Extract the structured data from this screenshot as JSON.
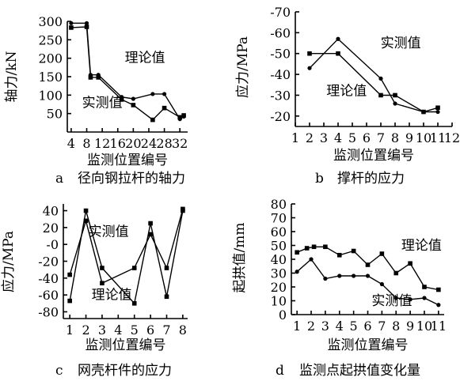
{
  "chart_data": [
    {
      "panel": "a",
      "type": "line",
      "caption": "径向钢拉杆的轴力",
      "xlabel": "监测位置编号",
      "ylabel": "轴力/kN",
      "xticks": [
        4,
        8,
        12,
        16,
        20,
        24,
        28,
        32
      ],
      "yticks": [
        50,
        100,
        150,
        200,
        250,
        300
      ],
      "xlim": [
        3,
        34
      ],
      "ylim": [
        0,
        300
      ],
      "series": [
        {
          "name": "理论值",
          "x": [
            4,
            8,
            9,
            11,
            17,
            20,
            25,
            28,
            32,
            33
          ],
          "y": [
            295,
            295,
            155,
            155,
            95,
            90,
            103,
            103,
            35,
            42
          ]
        },
        {
          "name": "实测值",
          "x": [
            4,
            8,
            9,
            11,
            17,
            20,
            25,
            28,
            32,
            33
          ],
          "y": [
            283,
            285,
            148,
            148,
            88,
            73,
            33,
            65,
            40,
            45
          ]
        }
      ],
      "annotations": [
        {
          "text": "理论值",
          "x": 23,
          "y": 190
        },
        {
          "text": "实测值",
          "x": 12,
          "y": 68
        }
      ]
    },
    {
      "panel": "b",
      "type": "line",
      "caption": "撑杆的应力",
      "xlabel": "监测位置编号",
      "ylabel": "应力/MPa",
      "xticks": [
        1,
        2,
        3,
        4,
        5,
        6,
        7,
        8,
        9,
        10,
        11,
        12
      ],
      "yticks": [
        -70,
        -60,
        -50,
        -40,
        -30,
        -20
      ],
      "xlim": [
        1,
        12
      ],
      "ylim": [
        -15,
        -70
      ],
      "series": [
        {
          "name": "理论值",
          "x": [
            2,
            4,
            7,
            8,
            10,
            11
          ],
          "y": [
            -50,
            -50,
            -30,
            -30,
            -22,
            -24
          ]
        },
        {
          "name": "实测值",
          "x": [
            2,
            4,
            7,
            8,
            10,
            11
          ],
          "y": [
            -43,
            -57,
            -38,
            -26,
            -22,
            -22
          ]
        }
      ],
      "annotations": [
        {
          "text": "实测值",
          "x": 8.4,
          "y": -53
        },
        {
          "text": "理论值",
          "x": 4.6,
          "y": -30
        }
      ]
    },
    {
      "panel": "c",
      "type": "line",
      "caption": "网壳杆件的应力",
      "xlabel": "监测位置编号",
      "ylabel": "应力/MPa",
      "xticks": [
        1,
        2,
        3,
        4,
        5,
        6,
        7,
        8
      ],
      "ytick_labels": [
        "-80",
        "-60",
        "-40",
        "-20",
        "-0",
        "20",
        "40"
      ],
      "yticks": [
        -80,
        -60,
        -40,
        -20,
        0,
        20,
        40
      ],
      "xlim": [
        0.6,
        8.3
      ],
      "ylim": [
        -88,
        48
      ],
      "series": [
        {
          "name": "理论值",
          "x": [
            1,
            2,
            3,
            5,
            6,
            7,
            8
          ],
          "y": [
            -67,
            40,
            -28,
            -70,
            25,
            -62,
            40
          ]
        },
        {
          "name": "实测值",
          "x": [
            1,
            2,
            3,
            5,
            6,
            7,
            8
          ],
          "y": [
            -36,
            28,
            -46,
            -28,
            12,
            -28,
            42
          ]
        }
      ],
      "annotations": [
        {
          "text": "理论值",
          "x": 3.6,
          "y": -65
        },
        {
          "text": "实测值",
          "x": 3.4,
          "y": 10
        }
      ]
    },
    {
      "panel": "d",
      "type": "line",
      "caption": "监测点起拱值变化量",
      "xlabel": "监测位置编号",
      "ylabel": "起拱值/mm",
      "xticks": [
        1,
        2,
        3,
        4,
        5,
        6,
        7,
        8,
        9,
        10,
        11
      ],
      "yticks": [
        0,
        10,
        20,
        30,
        40,
        50,
        60,
        70,
        80
      ],
      "xlim": [
        0.6,
        11.4
      ],
      "ylim": [
        0,
        80
      ],
      "series": [
        {
          "name": "理论值",
          "x": [
            1,
            1.7,
            2.2,
            3,
            4,
            5,
            6,
            7,
            8,
            9,
            10,
            11
          ],
          "y": [
            45,
            48,
            49,
            49,
            43,
            46,
            36,
            44,
            30,
            37,
            20,
            18
          ]
        },
        {
          "name": "实测值",
          "x": [
            1,
            2,
            3,
            4,
            5,
            6,
            7,
            8,
            9,
            10,
            11
          ],
          "y": [
            31,
            40,
            26,
            28,
            28,
            28,
            22,
            12,
            11,
            12,
            7
          ]
        }
      ],
      "annotations": [
        {
          "text": "理论值",
          "x": 9.8,
          "y": 47
        },
        {
          "text": "实测值",
          "x": 7.7,
          "y": 7
        }
      ]
    }
  ],
  "panels": [
    {
      "letter": "a",
      "caption": "径向钢拉杆的轴力"
    },
    {
      "letter": "b",
      "caption": "撑杆的应力"
    },
    {
      "letter": "c",
      "caption": "网壳杆件的应力"
    },
    {
      "letter": "d",
      "caption": "监测点起拱值变化量"
    }
  ]
}
